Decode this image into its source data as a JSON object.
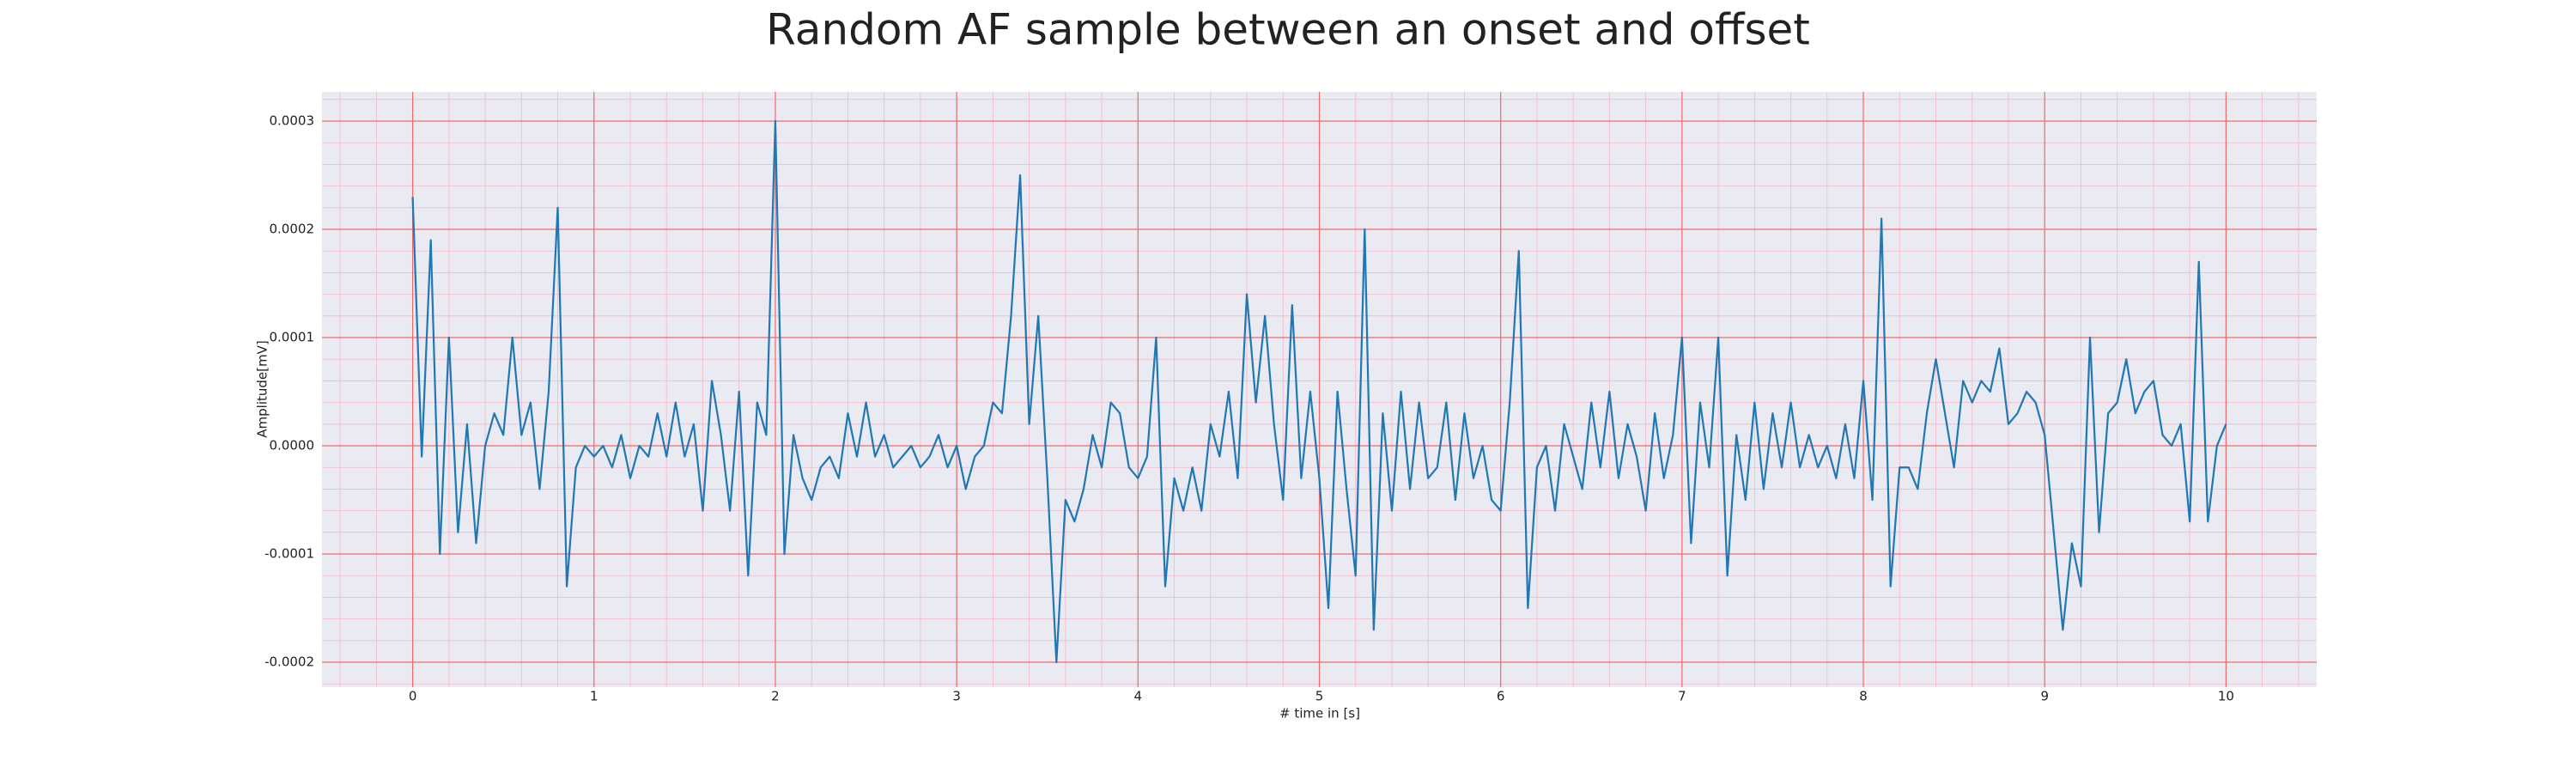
{
  "chart_data": {
    "type": "line",
    "title": "Random AF sample between an onset and offset",
    "x_label": "# time in [s]",
    "y_label": "Amplitude[mV]",
    "color": "#1f77b4",
    "grid": true,
    "minor_grid": true,
    "xlim": [
      -0.5,
      10.5
    ],
    "xticks": [
      0,
      1,
      2,
      3,
      4,
      5,
      6,
      7,
      8,
      9,
      10
    ],
    "ylim": [
      -0.000223,
      0.000327
    ],
    "yticks": [
      -0.0002,
      -0.0001,
      {
        "value": 0,
        "label": "0.0000"
      },
      0.0001,
      0.0002,
      0.0003
    ],
    "x": [
      0,
      0.05,
      0.1,
      0.15,
      0.2,
      0.25,
      0.3,
      0.35,
      0.4,
      0.45,
      0.5,
      0.55,
      0.6,
      0.65,
      0.7,
      0.75,
      0.8,
      0.85,
      0.9,
      0.95,
      1,
      1.05,
      1.1,
      1.15,
      1.2,
      1.25,
      1.3,
      1.35,
      1.4,
      1.45,
      1.5,
      1.55,
      1.6,
      1.65,
      1.7,
      1.75,
      1.8,
      1.85,
      1.9,
      1.95,
      2,
      2.05,
      2.1,
      2.15,
      2.2,
      2.25,
      2.3,
      2.35,
      2.4,
      2.45,
      2.5,
      2.55,
      2.6,
      2.65,
      2.7,
      2.75,
      2.8,
      2.85,
      2.9,
      2.95,
      3,
      3.05,
      3.1,
      3.15,
      3.2,
      3.25,
      3.3,
      3.35,
      3.4,
      3.45,
      3.5,
      3.55,
      3.6,
      3.65,
      3.7,
      3.75,
      3.8,
      3.85,
      3.9,
      3.95,
      4,
      4.05,
      4.1,
      4.15,
      4.2,
      4.25,
      4.3,
      4.35,
      4.4,
      4.45,
      4.5,
      4.55,
      4.6,
      4.65,
      4.7,
      4.75,
      4.8,
      4.85,
      4.9,
      4.95,
      5,
      5.05,
      5.1,
      5.15,
      5.2,
      5.25,
      5.3,
      5.35,
      5.4,
      5.45,
      5.5,
      5.55,
      5.6,
      5.65,
      5.7,
      5.75,
      5.8,
      5.85,
      5.9,
      5.95,
      6,
      6.05,
      6.1,
      6.15,
      6.2,
      6.25,
      6.3,
      6.35,
      6.4,
      6.45,
      6.5,
      6.55,
      6.6,
      6.65,
      6.7,
      6.75,
      6.8,
      6.85,
      6.9,
      6.95,
      7,
      7.05,
      7.1,
      7.15,
      7.2,
      7.25,
      7.3,
      7.35,
      7.4,
      7.45,
      7.5,
      7.55,
      7.6,
      7.65,
      7.7,
      7.75,
      7.8,
      7.85,
      7.9,
      7.95,
      8,
      8.05,
      8.1,
      8.15,
      8.2,
      8.25,
      8.3,
      8.35,
      8.4,
      8.45,
      8.5,
      8.55,
      8.6,
      8.65,
      8.7,
      8.75,
      8.8,
      8.85,
      8.9,
      8.95,
      9,
      9.05,
      9.1,
      9.15,
      9.2,
      9.25,
      9.3,
      9.35,
      9.4,
      9.45,
      9.5,
      9.55,
      9.6,
      9.65,
      9.7,
      9.75,
      9.8,
      9.85,
      9.9,
      9.95,
      10
    ],
    "values": [
      0.00023,
      -1e-05,
      0.00019,
      -0.0001,
      0.0001,
      -8e-05,
      2e-05,
      -9e-05,
      0,
      3e-05,
      1e-05,
      0.0001,
      1e-05,
      4e-05,
      -4e-05,
      5e-05,
      0.00022,
      -0.00013,
      -2e-05,
      0,
      -1e-05,
      0,
      -2e-05,
      1e-05,
      -3e-05,
      0,
      -1e-05,
      3e-05,
      -1e-05,
      4e-05,
      -1e-05,
      2e-05,
      -6e-05,
      6e-05,
      1e-05,
      -6e-05,
      5e-05,
      -0.00012,
      4e-05,
      1e-05,
      0.0003,
      -0.0001,
      1e-05,
      -3e-05,
      -5e-05,
      -2e-05,
      -1e-05,
      -3e-05,
      3e-05,
      -1e-05,
      4e-05,
      -1e-05,
      1e-05,
      -2e-05,
      -1e-05,
      0,
      -2e-05,
      -1e-05,
      1e-05,
      -2e-05,
      0,
      -4e-05,
      -1e-05,
      0,
      4e-05,
      3e-05,
      0.00012,
      0.00025,
      2e-05,
      0.00012,
      -3e-05,
      -0.0002,
      -5e-05,
      -7e-05,
      -4e-05,
      1e-05,
      -2e-05,
      4e-05,
      3e-05,
      -2e-05,
      -3e-05,
      -1e-05,
      0.0001,
      -0.00013,
      -3e-05,
      -6e-05,
      -2e-05,
      -6e-05,
      2e-05,
      -1e-05,
      5e-05,
      -3e-05,
      0.00014,
      4e-05,
      0.00012,
      2e-05,
      -5e-05,
      0.00013,
      -3e-05,
      5e-05,
      -3e-05,
      -0.00015,
      5e-05,
      -4e-05,
      -0.00012,
      0.0002,
      -0.00017,
      3e-05,
      -6e-05,
      5e-05,
      -4e-05,
      4e-05,
      -3e-05,
      -2e-05,
      4e-05,
      -5e-05,
      3e-05,
      -3e-05,
      0,
      -5e-05,
      -6e-05,
      4e-05,
      0.00018,
      -0.00015,
      -2e-05,
      0,
      -6e-05,
      2e-05,
      -1e-05,
      -4e-05,
      4e-05,
      -2e-05,
      5e-05,
      -3e-05,
      2e-05,
      -1e-05,
      -6e-05,
      3e-05,
      -3e-05,
      1e-05,
      0.0001,
      -9e-05,
      4e-05,
      -2e-05,
      0.0001,
      -0.00012,
      1e-05,
      -5e-05,
      4e-05,
      -4e-05,
      3e-05,
      -2e-05,
      4e-05,
      -2e-05,
      1e-05,
      -2e-05,
      0,
      -3e-05,
      2e-05,
      -3e-05,
      6e-05,
      -5e-05,
      0.00021,
      -0.00013,
      -2e-05,
      -2e-05,
      -4e-05,
      3e-05,
      8e-05,
      3e-05,
      -2e-05,
      6e-05,
      4e-05,
      6e-05,
      5e-05,
      9e-05,
      2e-05,
      3e-05,
      5e-05,
      4e-05,
      1e-05,
      -8e-05,
      -0.00017,
      -9e-05,
      -0.00013,
      0.0001,
      -8e-05,
      3e-05,
      4e-05,
      8e-05,
      3e-05,
      5e-05,
      6e-05,
      1e-05,
      0,
      2e-05,
      -7e-05,
      0.00017,
      -7e-05,
      0,
      2e-05
    ]
  }
}
